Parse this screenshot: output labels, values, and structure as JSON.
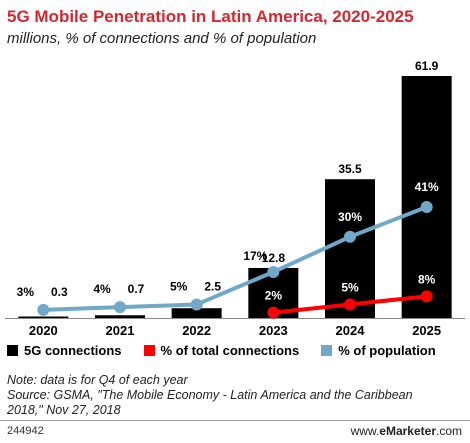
{
  "chart_data": {
    "type": "bar",
    "title": "5G Mobile Penetration in Latin America, 2020-2025",
    "subtitle": "millions, % of connections and % of population",
    "categories": [
      "2020",
      "2021",
      "2022",
      "2023",
      "2024",
      "2025"
    ],
    "series": [
      {
        "name": "5G connections",
        "kind": "bar",
        "color": "#000000",
        "values": [
          0.3,
          0.7,
          2.5,
          12.8,
          35.5,
          61.9
        ],
        "labels": [
          "0.3",
          "0.7",
          "2.5",
          "12.8",
          "35.5",
          "61.9"
        ]
      },
      {
        "name": "% of total connections",
        "kind": "line",
        "color": "#ff0000",
        "values": [
          null,
          null,
          null,
          2,
          5,
          8
        ],
        "labels": [
          "",
          "",
          "",
          "2%",
          "5%",
          "8%"
        ]
      },
      {
        "name": "% of population",
        "kind": "line",
        "color": "#6fa8c8",
        "values": [
          3,
          4,
          5,
          17,
          30,
          41
        ],
        "labels": [
          "3%",
          "4%",
          "5%",
          "17%",
          "30%",
          "41%"
        ]
      }
    ],
    "ylim_bars": [
      0,
      61.9
    ],
    "ylim_lines": [
      0,
      41
    ],
    "legend_position": "bottom",
    "grid": false
  },
  "notes": [
    "Note: data is for Q4 of each year",
    "Source: GSMA, \"The Mobile Economy - Latin America and the Caribbean",
    "2018,\" Nov 27, 2018"
  ],
  "footer": {
    "chart_id": "244942",
    "brand_prefix": "www.",
    "brand_name": "eMarketer",
    "brand_suffix": ".com"
  }
}
